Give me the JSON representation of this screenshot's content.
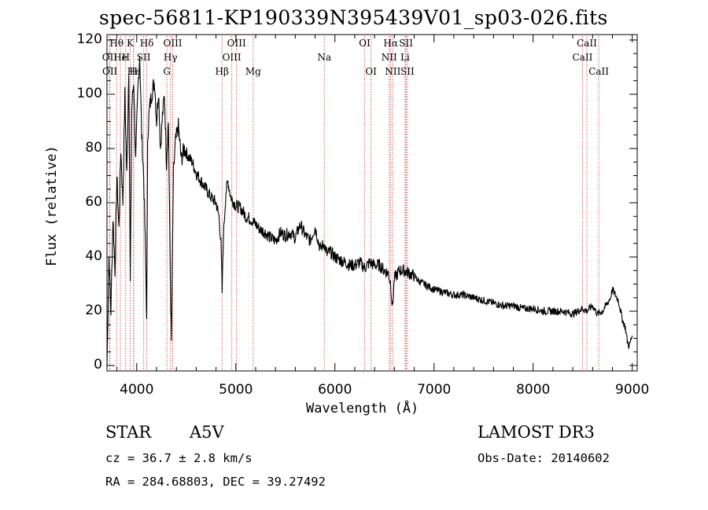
{
  "chart_data": {
    "type": "line",
    "title": "spec-56811-KP190339N395439V01_sp03-026.fits",
    "xlabel": "Wavelength (Å)",
    "ylabel": "Flux (relative)",
    "xlim": [
      3700,
      9050
    ],
    "ylim": [
      -2,
      122
    ],
    "xticks": [
      4000,
      5000,
      6000,
      7000,
      8000,
      9000
    ],
    "yticks": [
      0,
      20,
      40,
      60,
      80,
      100,
      120
    ],
    "grid": false,
    "series": [
      {
        "name": "flux",
        "x": [
          3700,
          3720,
          3740,
          3760,
          3780,
          3800,
          3820,
          3840,
          3860,
          3880,
          3900,
          3920,
          3935,
          3950,
          3970,
          3990,
          4010,
          4030,
          4050,
          4070,
          4090,
          4101,
          4110,
          4130,
          4150,
          4180,
          4200,
          4220,
          4240,
          4260,
          4280,
          4300,
          4320,
          4340,
          4350,
          4370,
          4390,
          4420,
          4450,
          4480,
          4520,
          4560,
          4600,
          4650,
          4700,
          4750,
          4800,
          4830,
          4850,
          4862,
          4875,
          4900,
          4920,
          4950,
          5000,
          5050,
          5100,
          5150,
          5200,
          5250,
          5300,
          5350,
          5400,
          5450,
          5500,
          5550,
          5600,
          5650,
          5700,
          5750,
          5800,
          5850,
          5890,
          5920,
          5950,
          6000,
          6050,
          6100,
          6150,
          6200,
          6250,
          6300,
          6350,
          6400,
          6450,
          6500,
          6540,
          6563,
          6580,
          6600,
          6650,
          6700,
          6750,
          6800,
          6850,
          6900,
          6950,
          7000,
          7100,
          7200,
          7300,
          7400,
          7500,
          7600,
          7700,
          7800,
          7900,
          8000,
          8100,
          8200,
          8300,
          8400,
          8450,
          8500,
          8540,
          8600,
          8650,
          8700,
          8750,
          8780,
          8800,
          8830,
          8860,
          8900,
          8930,
          8950,
          8970,
          8990,
          9000
        ],
        "y": [
          0,
          40,
          20,
          55,
          35,
          70,
          50,
          80,
          60,
          100,
          70,
          110,
          30,
          95,
          105,
          75,
          100,
          115,
          85,
          70,
          40,
          15,
          85,
          95,
          100,
          105,
          90,
          102,
          80,
          92,
          100,
          75,
          90,
          30,
          8,
          70,
          82,
          88,
          76,
          80,
          77,
          75,
          71,
          68,
          65,
          62,
          60,
          55,
          45,
          27,
          48,
          64,
          68,
          62,
          59,
          58,
          55,
          54,
          52,
          50,
          49,
          47,
          46,
          49,
          48,
          49,
          47,
          52,
          48,
          46,
          51,
          43,
          45,
          41,
          42,
          40,
          39,
          38,
          37,
          37,
          38,
          36,
          38,
          37,
          37,
          35,
          34,
          30,
          21,
          32,
          35,
          35,
          34,
          33,
          31,
          30,
          29,
          28,
          27,
          26,
          26,
          25,
          24,
          23,
          22,
          22,
          21,
          21,
          20,
          20,
          20,
          19,
          20,
          21,
          20,
          22,
          19,
          20,
          23,
          25,
          28,
          26,
          24,
          17,
          14,
          9,
          7,
          10,
          11
        ]
      }
    ],
    "lines": {
      "top": [
        {
          "label": "Hθ",
          "wl": 3797
        },
        {
          "label": "K",
          "wl": 3934
        },
        {
          "label": "Hδ",
          "wl": 4102
        },
        {
          "label": "OIII",
          "wl": 4363
        },
        {
          "label": "OIII",
          "wl": 5007
        },
        {
          "label": "OI",
          "wl": 6300
        },
        {
          "label": "Hα",
          "wl": 6563
        },
        {
          "label": "SII",
          "wl": 6717
        },
        {
          "label": "CaII",
          "wl": 8542
        }
      ],
      "mid": [
        {
          "label": "OII",
          "wl": 3727
        },
        {
          "label": "He",
          "wl": 3835
        },
        {
          "label": "H",
          "wl": 3889
        },
        {
          "label": "SII",
          "wl": 4070
        },
        {
          "label": "Hγ",
          "wl": 4341
        },
        {
          "label": "OIII",
          "wl": 4959
        },
        {
          "label": "Na",
          "wl": 5893
        },
        {
          "label": "NII",
          "wl": 6548
        },
        {
          "label": "Li",
          "wl": 6708
        },
        {
          "label": "CaII",
          "wl": 8498
        }
      ],
      "low": [
        {
          "label": "OII",
          "wl": 3729
        },
        {
          "label": "Hε",
          "wl": 3970
        },
        {
          "label": "H",
          "wl": 3968
        },
        {
          "label": "G",
          "wl": 4305
        },
        {
          "label": "Hβ",
          "wl": 4861
        },
        {
          "label": "Mg",
          "wl": 5175
        },
        {
          "label": "OI",
          "wl": 6364
        },
        {
          "label": "NII",
          "wl": 6584
        },
        {
          "label": "SII",
          "wl": 6731
        },
        {
          "label": "CaII",
          "wl": 8662
        }
      ]
    },
    "line_color": "#c0392b"
  },
  "info": {
    "object_class": "STAR",
    "subclass": "A5V",
    "survey": "LAMOST DR3",
    "cz": "cz = 36.7 ± 2.8 km/s",
    "obs_date": "Obs-Date: 20140602",
    "coords": "RA = 284.68803, DEC =  39.27492"
  }
}
